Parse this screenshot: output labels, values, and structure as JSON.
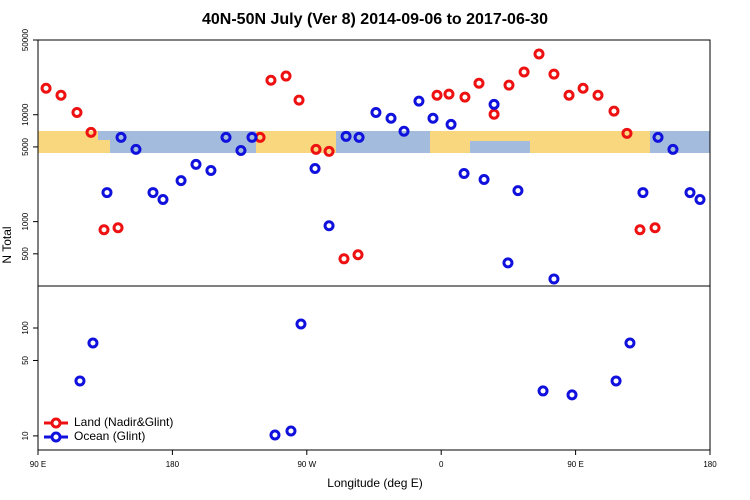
{
  "chart_data": {
    "type": "scatter",
    "title": "40N-50N July (Ver 8)   2014-09-06 to 2017-06-30",
    "xlabel": "Longitude (deg E)",
    "ylabel": "N Total",
    "xlim": [
      90,
      540
    ],
    "xticks": [
      {
        "value": 90,
        "label": "90 E"
      },
      180,
      {
        "value": 270,
        "label": "90 W"
      },
      {
        "value": 360,
        "label": "0"
      },
      {
        "value": 450,
        "label": "90 E"
      },
      {
        "value": 540,
        "label": "180"
      }
    ],
    "log_y": true,
    "legend": "bottomleft",
    "series": [
      {
        "name": "Land (Nadir&Glint)",
        "color": "#ee1111"
      },
      {
        "name": "Ocean (Glint)",
        "color": "#1111dd"
      }
    ],
    "panels": [
      {
        "ylim": [
          250,
          50000
        ],
        "yticks": [
          500,
          1000,
          5000,
          10000,
          50000
        ],
        "series": [
          {
            "x": [
              95.4,
              105.4,
              116.1,
              125.5,
              134.2,
              143.6,
              238.7,
              246,
              256.1,
              264.8,
              276.2,
              284.9,
              294.9,
              304.3,
              357.2,
              365.2,
              375.9,
              385.3,
              395.4,
              405.4,
              415.5,
              425.5,
              435.5,
              445.6,
              455,
              465,
              475.7,
              484.4,
              493.1,
              503.2
            ],
            "values": [
              17700,
              15200,
              10500,
              6840,
              840,
              877,
              6140,
              21000,
              23000,
              13700,
              4740,
              4540,
              449,
              490,
              15200,
              15600,
              14600,
              19700,
              10100,
              18900,
              25100,
              37000,
              24000,
              15200,
              17700,
              15200,
              10800,
              6700,
              840,
              877
            ]
          },
          {
            "x": [
              136.2,
              145.6,
              155.6,
              167,
              173.7,
              185.8,
              195.8,
              205.8,
              215.9,
              225.9,
              233.3,
              275.5,
              284.9,
              296.3,
              305,
              316.3,
              326.4,
              335.1,
              345.1,
              354.5,
              366.6,
              375.3,
              388.7,
              395.4,
              404.7,
              411.4,
              435.5,
              495.1,
              505.2,
              515.2,
              526.6,
              533.3
            ],
            "values": [
              1870,
              6140,
              4740,
              1870,
              1610,
              2420,
              3430,
              3010,
              6140,
              4630,
              6140,
              3140,
              916,
              6280,
              6140,
              10500,
              9270,
              7000,
              13400,
              9270,
              8130,
              2820,
              2480,
              12500,
              411,
              1950,
              291,
              1870,
              6140,
              4740,
              1870,
              1610
            ]
          }
        ]
      },
      {
        "ylim": [
          7.4,
          245
        ],
        "yticks": [
          10,
          50,
          100
        ],
        "series": [
          {
            "x": [],
            "values": []
          },
          {
            "x": [
              118.1,
              126.8,
              266.1,
              248.7,
              259.4,
              428.2,
              447.6,
              477.1,
              486.4
            ],
            "values": [
              32.3,
              72.6,
              109,
              10.2,
              11.1,
              26.1,
              24,
              32.3,
              72.6
            ]
          }
        ]
      }
    ]
  }
}
